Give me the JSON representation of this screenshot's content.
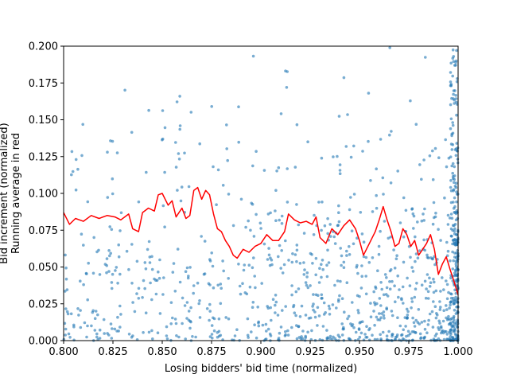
{
  "chart_data": {
    "type": "scatter",
    "title": "",
    "xlabel": "Losing bidders' bid time (normalized)",
    "ylabel_lines": [
      "Bid increment (normalized)",
      "Running average in red"
    ],
    "xlim": [
      0.8,
      1.0
    ],
    "ylim": [
      0.0,
      0.2
    ],
    "xticks": [
      "0.800",
      "0.825",
      "0.850",
      "0.875",
      "0.900",
      "0.925",
      "0.950",
      "0.975",
      "1.000"
    ],
    "yticks": [
      "0.000",
      "0.025",
      "0.050",
      "0.075",
      "0.100",
      "0.125",
      "0.150",
      "0.175",
      "0.200"
    ],
    "grid": false,
    "legend": "none",
    "colors": {
      "points": "#1f77b4",
      "running_average": "#ff0000"
    },
    "running_average": [
      [
        0.8,
        0.087
      ],
      [
        0.803,
        0.079
      ],
      [
        0.806,
        0.083
      ],
      [
        0.81,
        0.081
      ],
      [
        0.814,
        0.085
      ],
      [
        0.818,
        0.083
      ],
      [
        0.822,
        0.085
      ],
      [
        0.826,
        0.084
      ],
      [
        0.829,
        0.082
      ],
      [
        0.833,
        0.086
      ],
      [
        0.835,
        0.076
      ],
      [
        0.838,
        0.074
      ],
      [
        0.84,
        0.087
      ],
      [
        0.843,
        0.09
      ],
      [
        0.846,
        0.088
      ],
      [
        0.848,
        0.099
      ],
      [
        0.85,
        0.1
      ],
      [
        0.853,
        0.092
      ],
      [
        0.855,
        0.095
      ],
      [
        0.857,
        0.084
      ],
      [
        0.86,
        0.09
      ],
      [
        0.862,
        0.083
      ],
      [
        0.864,
        0.085
      ],
      [
        0.866,
        0.102
      ],
      [
        0.868,
        0.104
      ],
      [
        0.87,
        0.096
      ],
      [
        0.872,
        0.102
      ],
      [
        0.874,
        0.099
      ],
      [
        0.876,
        0.086
      ],
      [
        0.878,
        0.076
      ],
      [
        0.88,
        0.074
      ],
      [
        0.882,
        0.068
      ],
      [
        0.884,
        0.064
      ],
      [
        0.886,
        0.058
      ],
      [
        0.888,
        0.056
      ],
      [
        0.891,
        0.062
      ],
      [
        0.894,
        0.06
      ],
      [
        0.897,
        0.064
      ],
      [
        0.9,
        0.066
      ],
      [
        0.903,
        0.072
      ],
      [
        0.906,
        0.068
      ],
      [
        0.909,
        0.068
      ],
      [
        0.912,
        0.074
      ],
      [
        0.914,
        0.086
      ],
      [
        0.917,
        0.082
      ],
      [
        0.92,
        0.08
      ],
      [
        0.923,
        0.081
      ],
      [
        0.926,
        0.079
      ],
      [
        0.928,
        0.084
      ],
      [
        0.93,
        0.07
      ],
      [
        0.933,
        0.066
      ],
      [
        0.936,
        0.076
      ],
      [
        0.939,
        0.072
      ],
      [
        0.942,
        0.078
      ],
      [
        0.945,
        0.082
      ],
      [
        0.948,
        0.076
      ],
      [
        0.95,
        0.068
      ],
      [
        0.952,
        0.058
      ],
      [
        0.955,
        0.066
      ],
      [
        0.958,
        0.074
      ],
      [
        0.96,
        0.082
      ],
      [
        0.962,
        0.091
      ],
      [
        0.964,
        0.082
      ],
      [
        0.966,
        0.074
      ],
      [
        0.968,
        0.064
      ],
      [
        0.97,
        0.066
      ],
      [
        0.972,
        0.076
      ],
      [
        0.974,
        0.072
      ],
      [
        0.976,
        0.064
      ],
      [
        0.978,
        0.068
      ],
      [
        0.98,
        0.058
      ],
      [
        0.982,
        0.062
      ],
      [
        0.984,
        0.066
      ],
      [
        0.986,
        0.072
      ],
      [
        0.988,
        0.062
      ],
      [
        0.99,
        0.045
      ],
      [
        0.992,
        0.052
      ],
      [
        0.994,
        0.057
      ],
      [
        0.996,
        0.048
      ],
      [
        0.998,
        0.04
      ],
      [
        1.0,
        0.031
      ]
    ]
  }
}
